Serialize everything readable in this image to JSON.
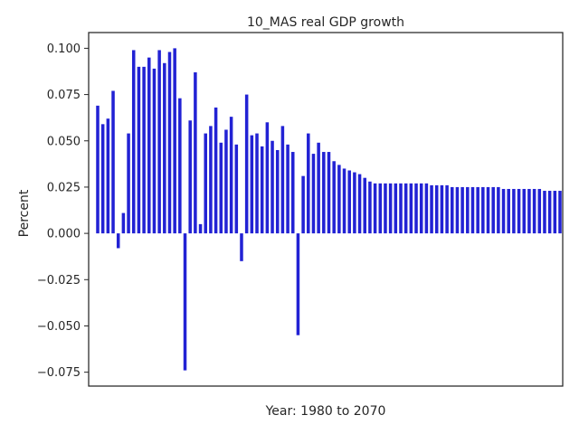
{
  "chart_data": {
    "type": "bar",
    "title": "10_MAS real GDP growth",
    "xlabel": "Year: 1980 to 2070",
    "ylabel": "Percent",
    "ylim": [
      -0.0825,
      0.1085
    ],
    "yticks": [
      0.1,
      0.075,
      0.05,
      0.025,
      0.0,
      -0.025,
      -0.05,
      -0.075
    ],
    "ytick_labels": [
      "0.100",
      "0.075",
      "0.050",
      "0.025",
      "0.000",
      "−0.025",
      "−0.050",
      "−0.075"
    ],
    "x_start_year": 1980,
    "x_end_year": 2070,
    "bar_color": "#2222d4",
    "grid": false,
    "values": [
      0.069,
      0.059,
      0.062,
      0.077,
      -0.008,
      0.011,
      0.054,
      0.099,
      0.09,
      0.09,
      0.095,
      0.089,
      0.099,
      0.092,
      0.098,
      0.1,
      0.073,
      -0.074,
      0.061,
      0.087,
      0.005,
      0.054,
      0.058,
      0.068,
      0.049,
      0.056,
      0.063,
      0.048,
      -0.015,
      0.075,
      0.053,
      0.054,
      0.047,
      0.06,
      0.05,
      0.045,
      0.058,
      0.048,
      0.044,
      -0.055,
      0.031,
      0.054,
      0.043,
      0.049,
      0.044,
      0.044,
      0.039,
      0.037,
      0.035,
      0.034,
      0.033,
      0.032,
      0.03,
      0.028,
      0.027,
      0.027,
      0.027,
      0.027,
      0.027,
      0.027,
      0.027,
      0.027,
      0.027,
      0.027,
      0.027,
      0.026,
      0.026,
      0.026,
      0.026,
      0.025,
      0.025,
      0.025,
      0.025,
      0.025,
      0.025,
      0.025,
      0.025,
      0.025,
      0.025,
      0.024,
      0.024,
      0.024,
      0.024,
      0.024,
      0.024,
      0.024,
      0.024,
      0.023,
      0.023,
      0.023,
      0.023
    ]
  }
}
